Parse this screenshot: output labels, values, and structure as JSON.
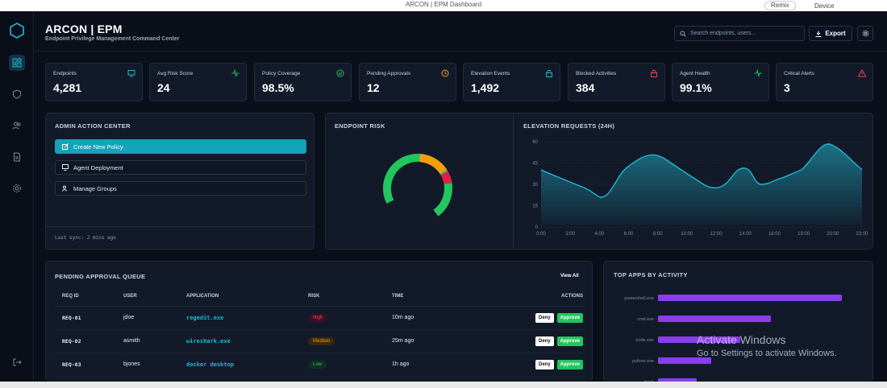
{
  "window": {
    "title": "ARCON | EPM Dashboard",
    "remix_label": "Remix",
    "device_label": "Device"
  },
  "header": {
    "brand": "ARCON | EPM",
    "subtitle": "Endpoint Privilege Management Command Center",
    "search_placeholder": "Search endpoints, users...",
    "export_label": "Export"
  },
  "sidebar": {
    "items": [
      "dashboard-icon",
      "shield-icon",
      "users-icon",
      "document-icon",
      "settings-icon",
      "logout-icon"
    ]
  },
  "kpis": [
    {
      "label": "Endpoints",
      "value": "4,281",
      "icon": "monitor-icon",
      "color": "#22b8cf"
    },
    {
      "label": "Avg Risk Score",
      "value": "24",
      "icon": "pulse-icon",
      "color": "#22c55e"
    },
    {
      "label": "Policy Coverage",
      "value": "98.5%",
      "icon": "check-circle-icon",
      "color": "#22c55e"
    },
    {
      "label": "Pending Approvals",
      "value": "12",
      "icon": "clock-icon",
      "color": "#f59e0b"
    },
    {
      "label": "Elevation Events",
      "value": "1,492",
      "icon": "unlock-icon",
      "color": "#22b8cf"
    },
    {
      "label": "Blocked Activities",
      "value": "384",
      "icon": "lock-icon",
      "color": "#ef4444"
    },
    {
      "label": "Agent Health",
      "value": "99.1%",
      "icon": "pulse-icon",
      "color": "#22c55e"
    },
    {
      "label": "Critical Alerts",
      "value": "3",
      "icon": "alert-triangle-icon",
      "color": "#ef4444"
    }
  ],
  "admin": {
    "title": "ADMIN ACTION CENTER",
    "buttons": [
      "Create New Policy",
      "Agent Deployment",
      "Manage Groups"
    ],
    "last_sync": "Last sync: 2 mins ago"
  },
  "endpoint_risk": {
    "title": "ENDPOINT RISK",
    "colors": {
      "low": "#22c55e",
      "medium": "#f59e0b",
      "high": "#e11d48"
    }
  },
  "elevation": {
    "title": "ELEVATION REQUESTS (24H)",
    "chart_data": {
      "type": "area",
      "x": [
        "0:00",
        "3:00",
        "4:00",
        "6:00",
        "8:00",
        "10:00",
        "12:00",
        "14:00",
        "16:00",
        "19:00",
        "20:00",
        "23:00"
      ],
      "y_ticks": [
        "60",
        "45",
        "30",
        "15",
        "0"
      ],
      "ylim": [
        0,
        60
      ],
      "color": "#22b8cf"
    }
  },
  "queue": {
    "title": "PENDING APPROVAL QUEUE",
    "view_all": "View All",
    "columns": [
      "REQ ID",
      "USER",
      "APPLICATION",
      "RISK",
      "TIME",
      "ACTIONS"
    ],
    "rows": [
      {
        "id": "REQ-01",
        "user": "jdoe",
        "app": "regedit.exe",
        "risk": "High",
        "time": "10m ago",
        "deny": "Deny",
        "approve": "Approve"
      },
      {
        "id": "REQ-02",
        "user": "asmith",
        "app": "wireshark.exe",
        "risk": "Medium",
        "time": "25m ago",
        "deny": "Deny",
        "approve": "Approve"
      },
      {
        "id": "REQ-03",
        "user": "bjones",
        "app": "docker desktop",
        "risk": "Low",
        "time": "1h ago",
        "deny": "Deny",
        "approve": "Approve"
      }
    ]
  },
  "top_apps": {
    "title": "TOP APPS BY ACTIVITY",
    "chart_data": {
      "type": "bar",
      "categories": [
        "powershell.exe",
        "cmd.exe",
        "node.exe",
        "python.exe",
        "bash"
      ],
      "color": "#8b3df0"
    }
  },
  "watermark": {
    "line1": "Activate Windows",
    "line2": "Go to Settings to activate Windows."
  }
}
